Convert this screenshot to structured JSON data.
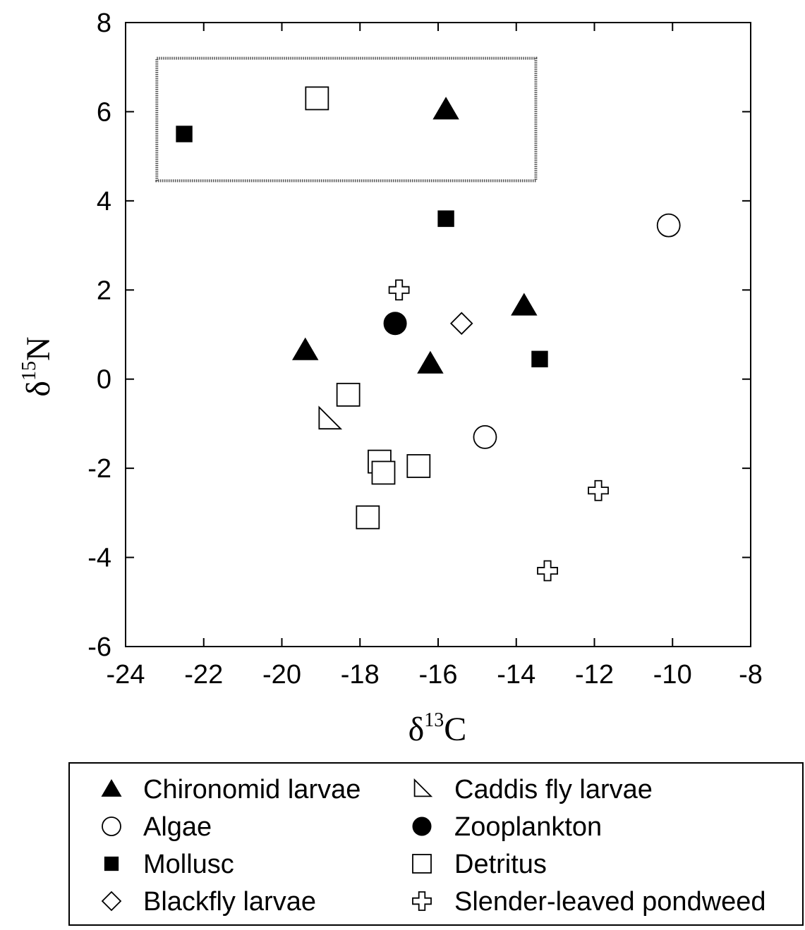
{
  "chart_data": {
    "type": "scatter",
    "xlabel": {
      "symbol": "δ",
      "sup": "13",
      "element": "C"
    },
    "ylabel": {
      "symbol": "δ",
      "sup": "15",
      "element": "N"
    },
    "xlim": [
      -24,
      -8
    ],
    "ylim": [
      -6,
      8
    ],
    "x_ticks": [
      "-24",
      "-22",
      "-20",
      "-18",
      "-16",
      "-14",
      "-12",
      "-10",
      "-8"
    ],
    "y_ticks": [
      "8",
      "6",
      "4",
      "2",
      "0",
      "-2",
      "-4",
      "-6"
    ],
    "grid": false,
    "legend_position": "bottom, two columns",
    "highlight_box": {
      "x": [
        -23.2,
        -13.5
      ],
      "y": [
        4.45,
        7.2
      ],
      "style": "dotted"
    },
    "series": [
      {
        "name": "Chironomid larvae",
        "marker": "filled-triangle",
        "points": [
          [
            -15.8,
            6.05
          ],
          [
            -19.4,
            0.65
          ],
          [
            -16.2,
            0.35
          ],
          [
            -13.8,
            1.65
          ]
        ]
      },
      {
        "name": "Caddis fly larvae",
        "marker": "open-right-triangle",
        "points": [
          [
            -18.8,
            -0.9
          ]
        ]
      },
      {
        "name": "Algae",
        "marker": "open-circle",
        "points": [
          [
            -10.1,
            3.45
          ],
          [
            -14.8,
            -1.3
          ]
        ]
      },
      {
        "name": "Zooplankton",
        "marker": "filled-circle",
        "points": [
          [
            -17.1,
            1.25
          ]
        ]
      },
      {
        "name": "Mollusc",
        "marker": "filled-square",
        "points": [
          [
            -22.5,
            5.5
          ],
          [
            -15.8,
            3.6
          ],
          [
            -13.4,
            0.45
          ]
        ]
      },
      {
        "name": "Detritus",
        "marker": "open-square",
        "points": [
          [
            -19.1,
            6.3
          ],
          [
            -18.3,
            -0.35
          ],
          [
            -17.5,
            -1.85
          ],
          [
            -17.4,
            -2.1
          ],
          [
            -16.5,
            -1.95
          ],
          [
            -17.8,
            -3.1
          ]
        ]
      },
      {
        "name": "Blackfly larvae",
        "marker": "open-diamond",
        "points": [
          [
            -15.4,
            1.25
          ]
        ]
      },
      {
        "name": "Slender-leaved pondweed",
        "marker": "open-cross",
        "points": [
          [
            -17.0,
            2.0
          ],
          [
            -11.9,
            -2.5
          ],
          [
            -13.2,
            -4.3
          ]
        ]
      }
    ],
    "legend": {
      "columns": [
        [
          "Chironomid larvae",
          "Algae",
          "Mollusc",
          "Blackfly larvae"
        ],
        [
          "Caddis fly larvae",
          "Zooplankton",
          "Detritus",
          "Slender-leaved pondweed"
        ]
      ]
    }
  }
}
